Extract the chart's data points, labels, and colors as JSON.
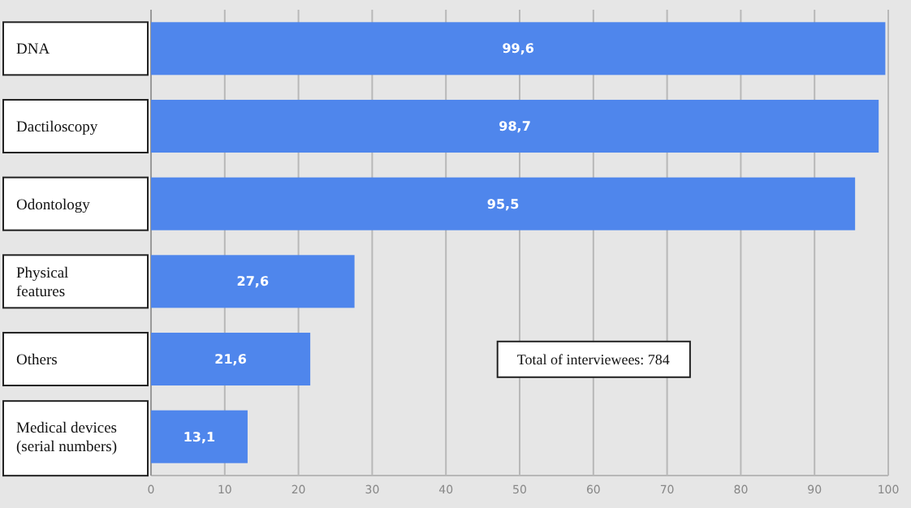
{
  "chart_data": {
    "type": "bar",
    "orientation": "horizontal",
    "categories": [
      "DNA",
      "Dactiloscopy",
      "Odontology",
      "Physical features",
      "Others",
      "Medical devices (serial numbers)"
    ],
    "values": [
      99.6,
      98.7,
      95.5,
      27.6,
      21.6,
      13.1
    ],
    "value_labels": [
      "99,6",
      "98,7",
      "95,5",
      "27,6",
      "21,6",
      "13,1"
    ],
    "color": "#4f86ec",
    "xlim": [
      0,
      100
    ],
    "xticks": [
      0,
      10,
      20,
      30,
      40,
      50,
      60,
      70,
      80,
      90,
      100
    ],
    "grid": "x",
    "annotations": [
      "Total of interviewees: 784"
    ]
  }
}
